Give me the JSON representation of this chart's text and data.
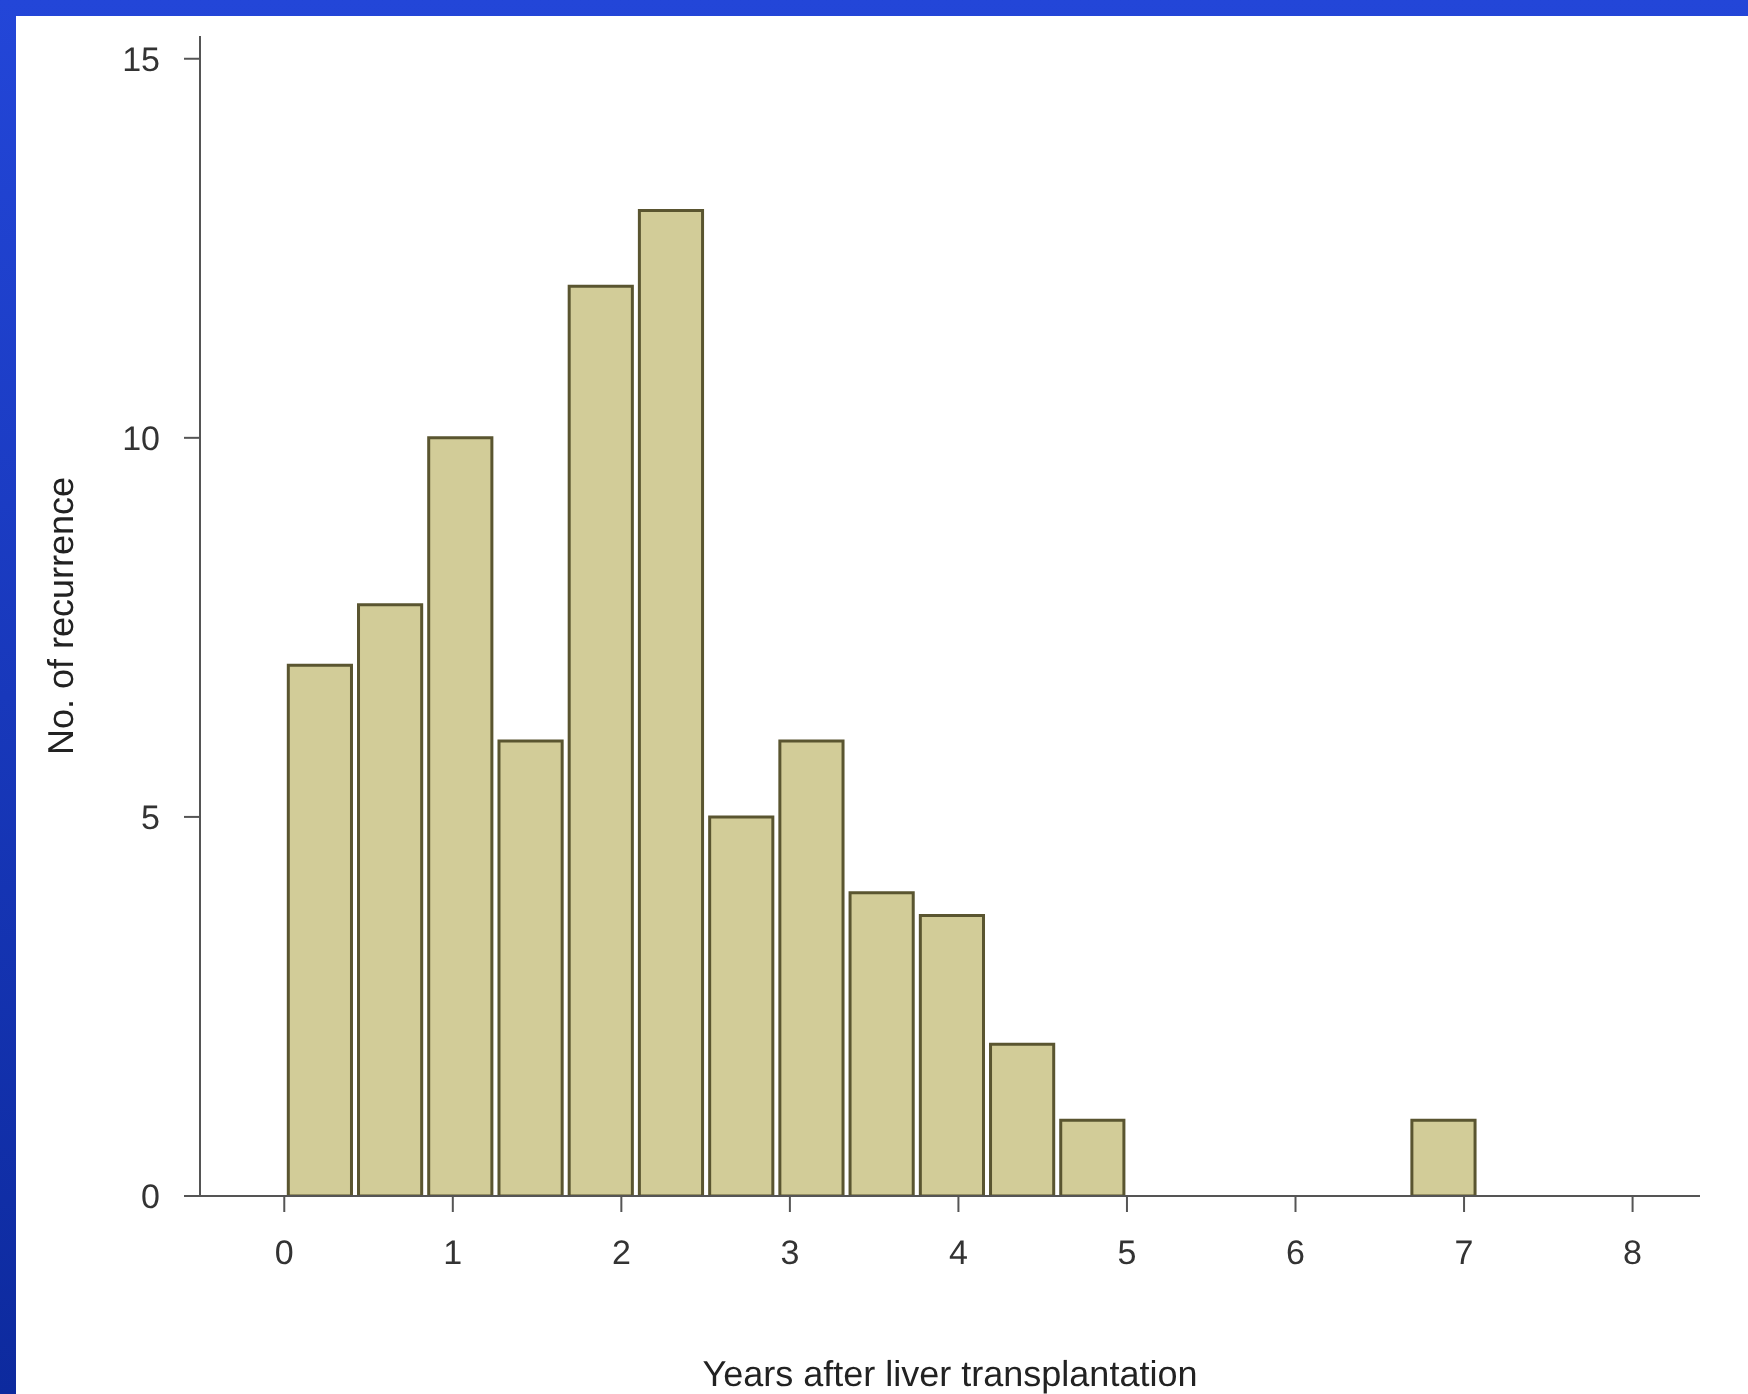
{
  "chart_data": {
    "type": "histogram",
    "xlabel": "Years after liver transplantation",
    "ylabel": "No. of recurrence",
    "bins": [
      0,
      0.417,
      0.833,
      1.25,
      1.667,
      2.083,
      2.5,
      2.917,
      3.333,
      3.75,
      4.167,
      4.583,
      5,
      5.417,
      5.833,
      6.25,
      6.667,
      7.083
    ],
    "values": [
      7,
      7.8,
      10,
      6,
      12,
      13,
      5,
      6,
      4,
      3.7,
      2,
      1,
      0,
      0,
      0,
      0,
      1
    ],
    "color": "#d2cc98",
    "xlim": [
      -0.5,
      8.4
    ],
    "xticks": [
      0,
      1,
      2,
      3,
      4,
      5,
      6,
      7,
      8
    ],
    "ylim": [
      0,
      15.3
    ],
    "yticks": [
      0,
      5,
      10,
      15
    ]
  }
}
